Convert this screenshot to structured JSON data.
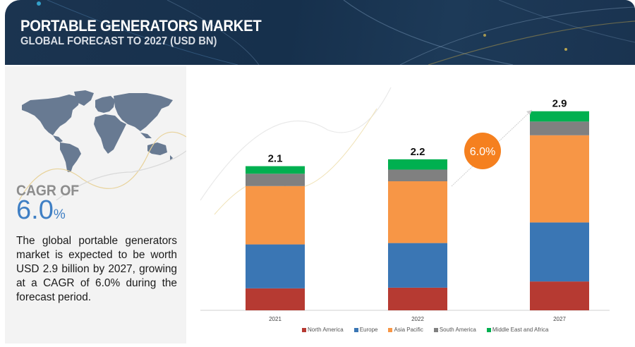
{
  "header": {
    "title": "PORTABLE GENERATORS MARKET",
    "subtitle": "GLOBAL FORECAST TO 2027 (USD BN)"
  },
  "left_panel": {
    "map_icon": "world-map",
    "cagr_label": "CAGR OF",
    "cagr_value": "6.0",
    "cagr_unit": "%",
    "description": "The global portable generators market is expected to be worth USD 2.9 billion by 2027, growing at a CAGR of 6.0% during the forecast period."
  },
  "chart_data": {
    "type": "bar",
    "stacked": true,
    "title": "PORTABLE GENERATORS MARKET",
    "subtitle": "GLOBAL FORECAST TO 2027 (USD BN)",
    "xlabel": "",
    "ylabel": "",
    "categories": [
      "2021",
      "2022",
      "2027"
    ],
    "totals": [
      "2.1",
      "2.2",
      "2.9"
    ],
    "total_values": [
      2.1,
      2.2,
      2.9
    ],
    "ylim": [
      0,
      3.0
    ],
    "grid": false,
    "legend_position": "bottom",
    "cagr_badge": "6.0%",
    "series": [
      {
        "name": "North America",
        "color": "#b63a32",
        "values": [
          0.32,
          0.33,
          0.42
        ]
      },
      {
        "name": "Europe",
        "color": "#3a76b4",
        "values": [
          0.64,
          0.65,
          0.86
        ]
      },
      {
        "name": "Asia Pacific",
        "color": "#f79646",
        "values": [
          0.85,
          0.9,
          1.27
        ]
      },
      {
        "name": "South America",
        "color": "#808080",
        "values": [
          0.18,
          0.17,
          0.2
        ]
      },
      {
        "name": "Middle East and Africa",
        "color": "#00b050",
        "values": [
          0.11,
          0.15,
          0.15
        ]
      }
    ]
  },
  "colors": {
    "header_bg": "#1b3450",
    "accent_blue": "#3f7fc4",
    "badge_orange": "#f5801f"
  }
}
